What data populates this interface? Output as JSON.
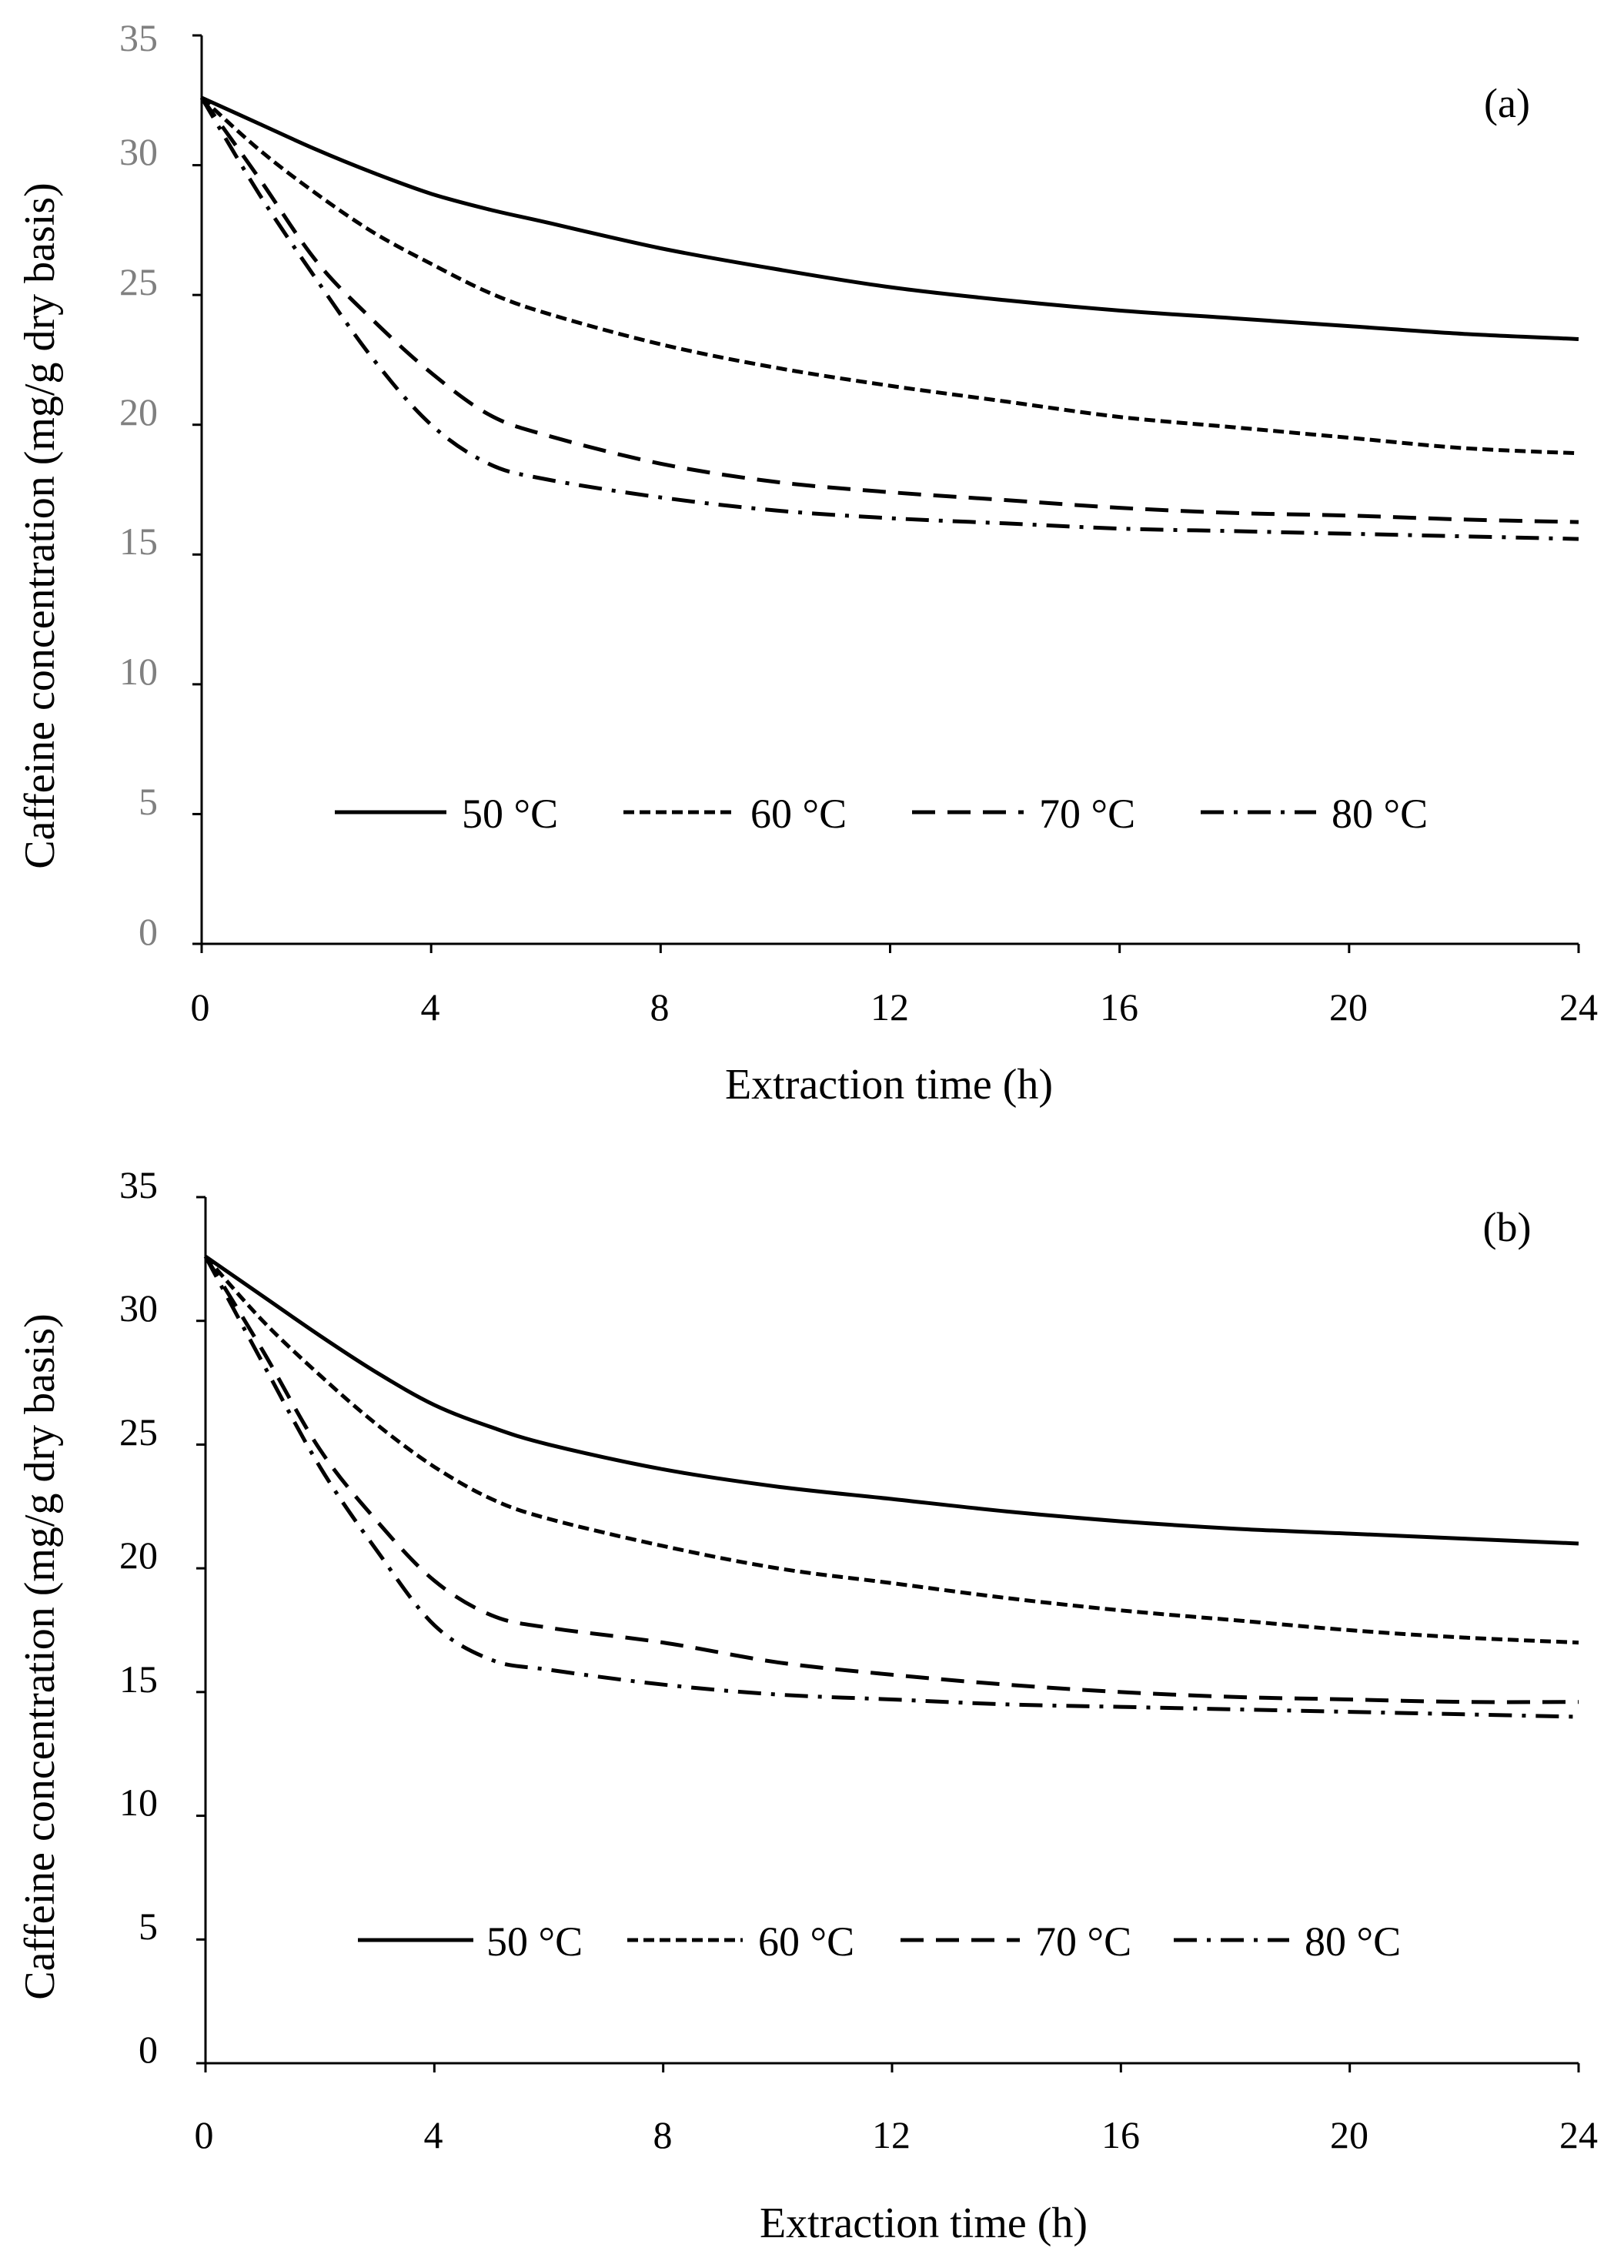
{
  "chart_data": [
    {
      "type": "line",
      "panel_label": "(a)",
      "xlabel": "Extraction time (h)",
      "ylabel": "Caffeine concentration (mg/g dry basis)",
      "xlim": [
        0,
        24
      ],
      "ylim": [
        0,
        35
      ],
      "x_ticks": [
        "0",
        "4",
        "8",
        "12",
        "16",
        "20",
        "24"
      ],
      "y_ticks": [
        "0",
        "5",
        "10",
        "15",
        "20",
        "25",
        "30",
        "35"
      ],
      "grid": false,
      "legend_position": "bottom-center",
      "x": [
        0,
        1,
        2,
        3,
        4,
        5,
        6,
        8,
        10,
        12,
        14,
        16,
        18,
        20,
        22,
        24
      ],
      "series": [
        {
          "name": "50 °C",
          "style": "solid",
          "values": [
            32.6,
            31.6,
            30.6,
            29.7,
            28.9,
            28.3,
            27.8,
            26.8,
            26.0,
            25.3,
            24.8,
            24.4,
            24.1,
            23.8,
            23.5,
            23.3
          ]
        },
        {
          "name": "60 °C",
          "style": "dotted",
          "values": [
            32.6,
            30.6,
            28.9,
            27.4,
            26.2,
            25.1,
            24.3,
            23.1,
            22.2,
            21.5,
            20.9,
            20.3,
            19.9,
            19.5,
            19.1,
            18.9
          ]
        },
        {
          "name": "70 °C",
          "style": "dashed",
          "values": [
            32.6,
            29.5,
            26.3,
            24.0,
            22.0,
            20.4,
            19.6,
            18.5,
            17.8,
            17.4,
            17.1,
            16.8,
            16.6,
            16.5,
            16.35,
            16.25
          ]
        },
        {
          "name": "80 °C",
          "style": "dashdot",
          "values": [
            32.6,
            28.9,
            25.6,
            22.5,
            20.0,
            18.5,
            17.9,
            17.2,
            16.7,
            16.4,
            16.2,
            16.0,
            15.9,
            15.8,
            15.7,
            15.6
          ]
        }
      ]
    },
    {
      "type": "line",
      "panel_label": "(b)",
      "xlabel": "Extraction time (h)",
      "ylabel": "Caffeine concentration (mg/g dry basis)",
      "xlim": [
        0,
        24
      ],
      "ylim": [
        0,
        35
      ],
      "x_ticks": [
        "0",
        "4",
        "8",
        "12",
        "16",
        "20",
        "24"
      ],
      "y_ticks": [
        "0",
        "5",
        "10",
        "15",
        "20",
        "25",
        "30",
        "35"
      ],
      "grid": false,
      "legend_position": "bottom-center",
      "x": [
        0,
        1,
        2,
        3,
        4,
        5,
        6,
        8,
        10,
        12,
        14,
        16,
        18,
        20,
        22,
        24
      ],
      "series": [
        {
          "name": "50 °C",
          "style": "solid",
          "values": [
            32.6,
            31.0,
            29.4,
            27.9,
            26.6,
            25.7,
            25.0,
            24.0,
            23.3,
            22.8,
            22.3,
            21.9,
            21.6,
            21.4,
            21.2,
            21.0
          ]
        },
        {
          "name": "60 °C",
          "style": "dotted",
          "values": [
            32.6,
            30.0,
            27.8,
            25.8,
            24.1,
            22.8,
            22.0,
            20.9,
            20.0,
            19.4,
            18.8,
            18.3,
            17.9,
            17.5,
            17.2,
            17.0
          ]
        },
        {
          "name": "70 °C",
          "style": "dashed",
          "values": [
            32.6,
            28.8,
            24.8,
            21.9,
            19.5,
            18.1,
            17.6,
            17.0,
            16.2,
            15.7,
            15.3,
            15.0,
            14.8,
            14.7,
            14.6,
            14.6
          ]
        },
        {
          "name": "80 °C",
          "style": "dashdot",
          "values": [
            32.6,
            28.3,
            24.1,
            20.7,
            17.7,
            16.3,
            15.9,
            15.3,
            14.9,
            14.7,
            14.5,
            14.4,
            14.3,
            14.2,
            14.1,
            14.0
          ]
        }
      ]
    }
  ]
}
